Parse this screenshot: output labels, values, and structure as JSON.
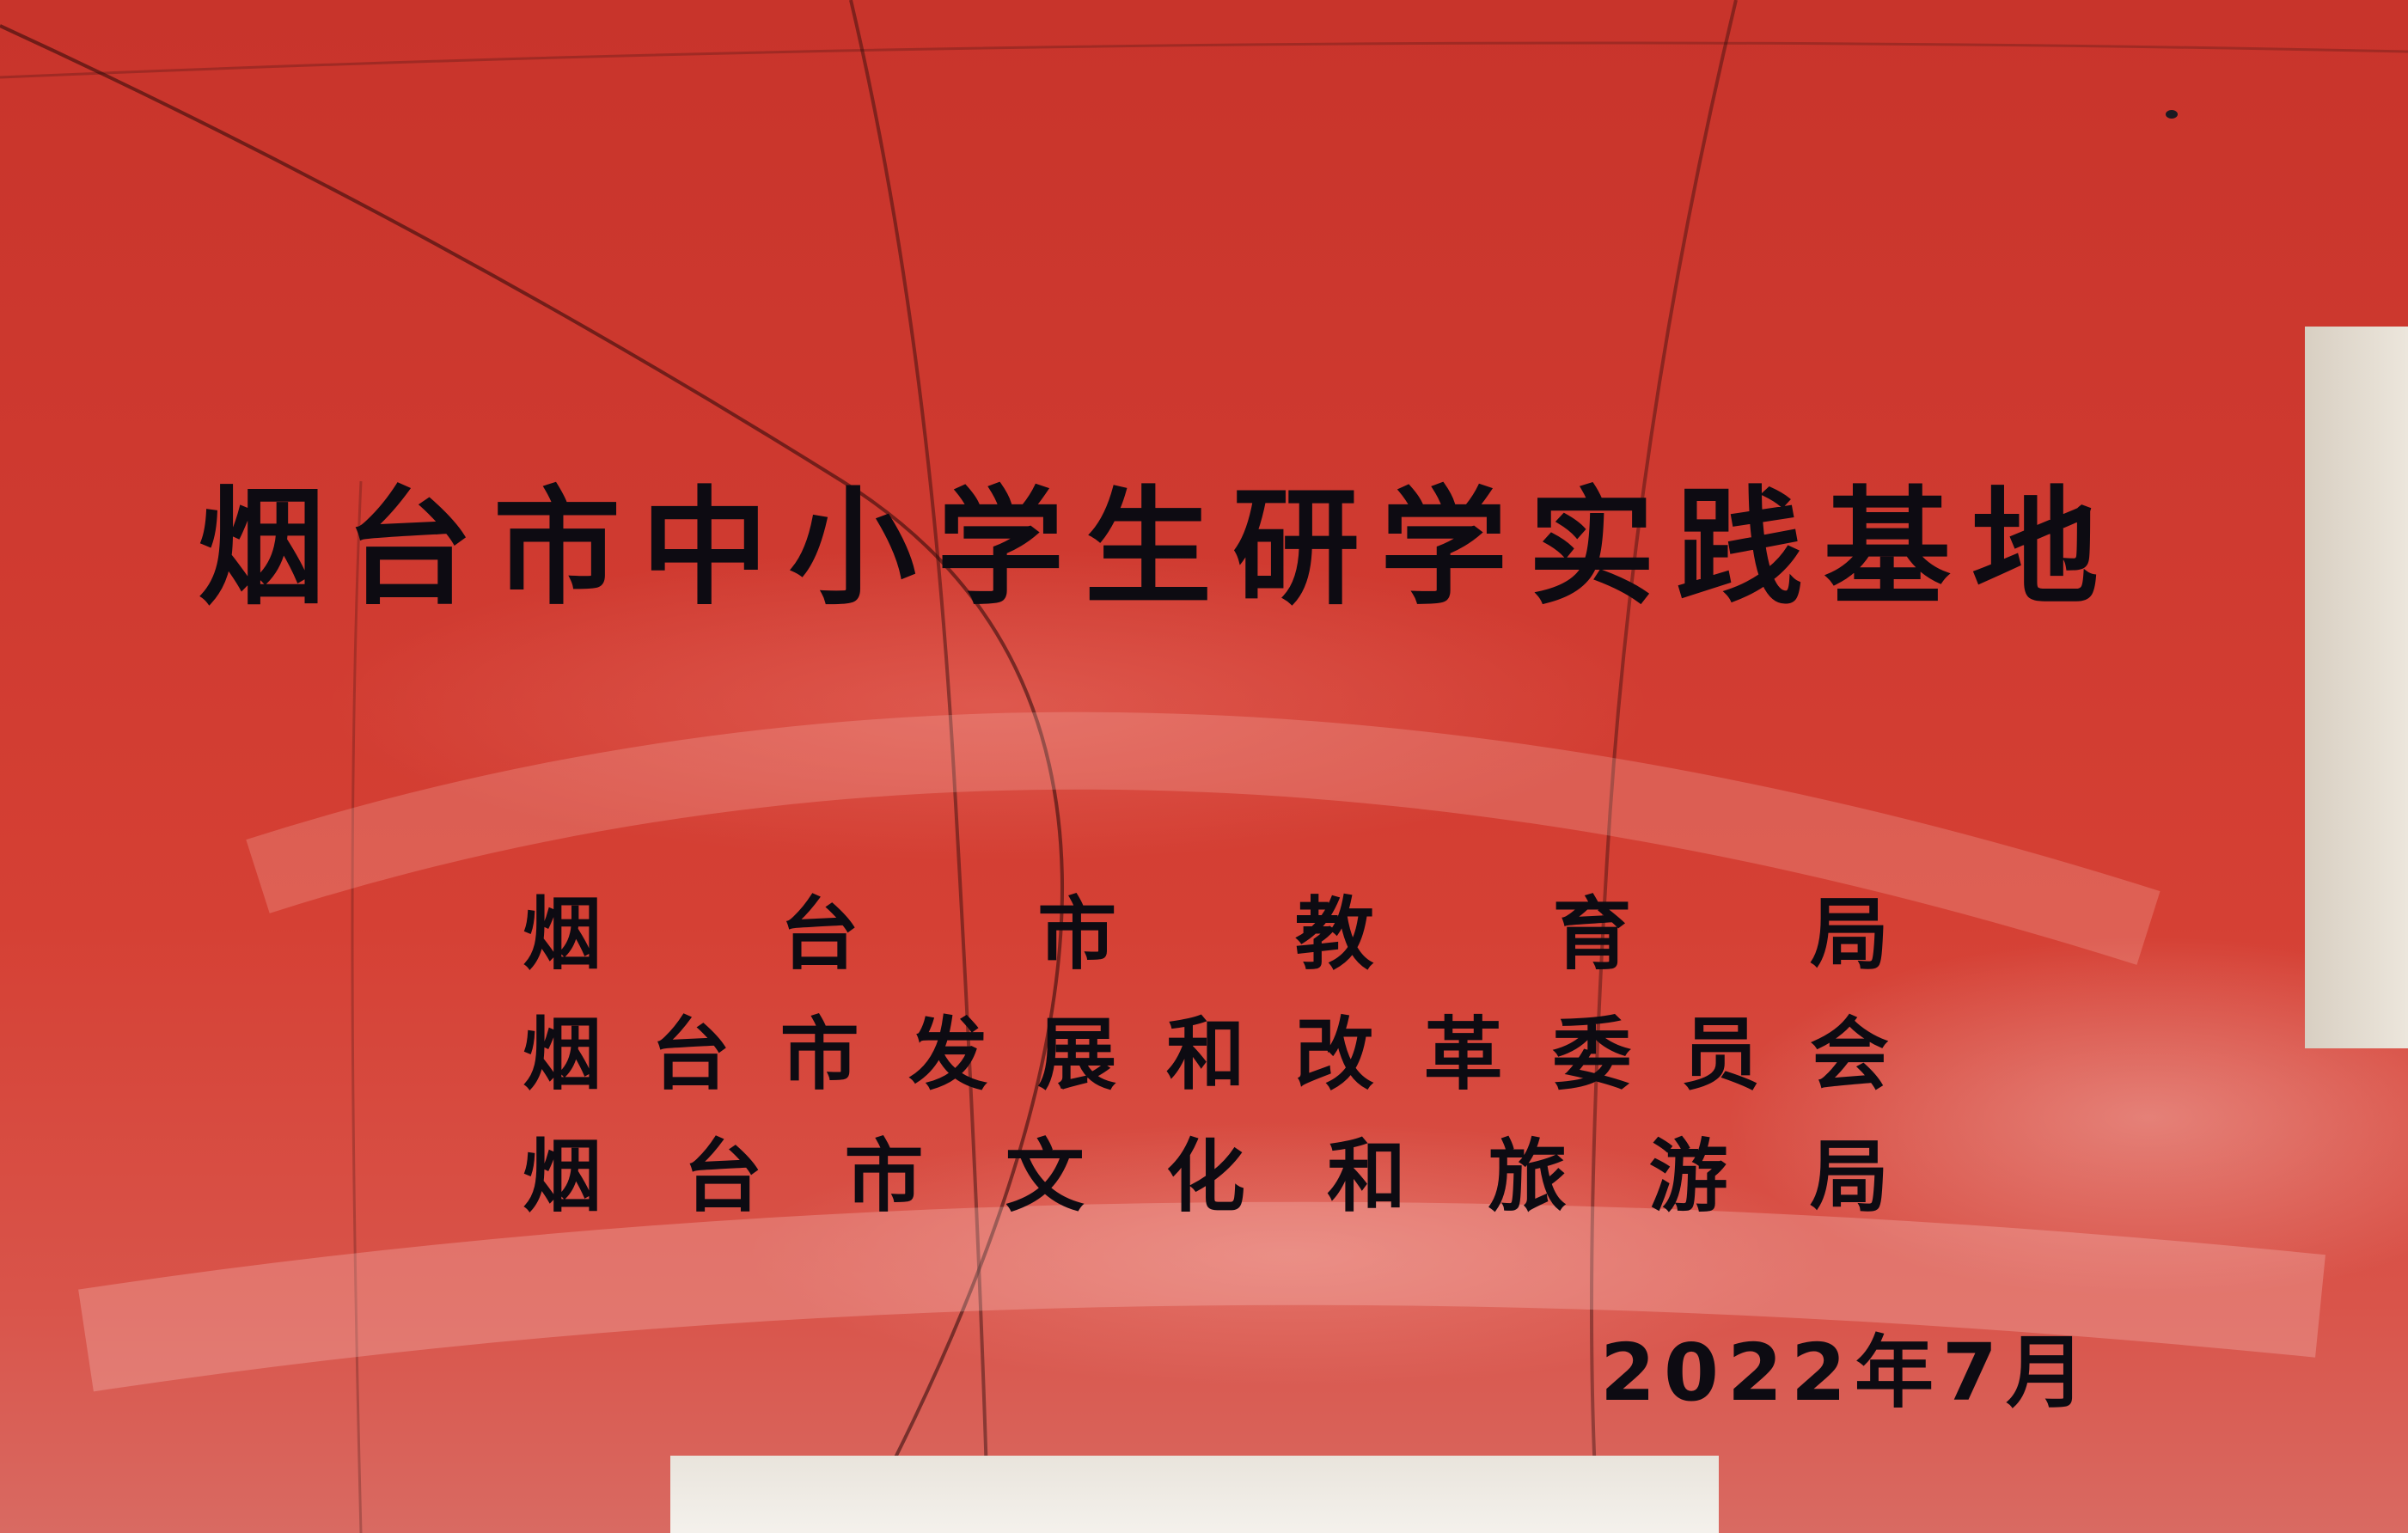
{
  "plaque": {
    "title": "烟台市中小学生研学实践基地",
    "issuers": [
      "烟台市教育局",
      "烟台市发展和改革委员会",
      "烟台市文化和旅游局"
    ],
    "date": "2022年7月"
  },
  "colors": {
    "plaque_red": "#cf3a30",
    "engraved_text": "#0d0b12"
  }
}
